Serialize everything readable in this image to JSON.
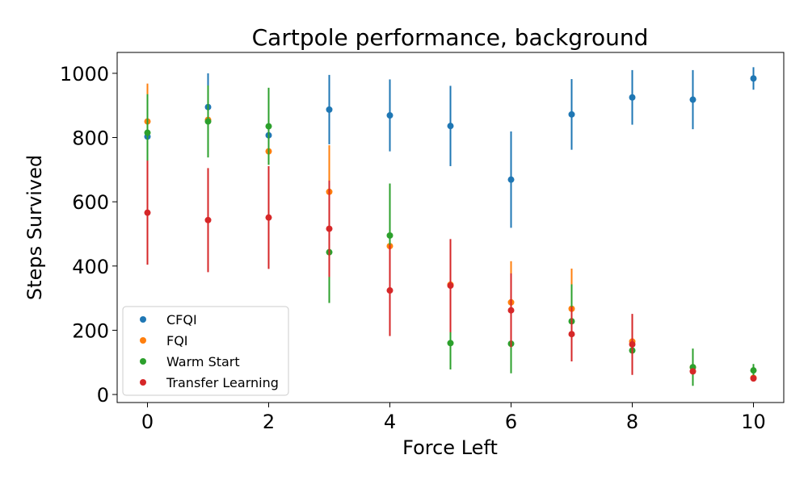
{
  "chart_data": {
    "type": "scatter",
    "title": "Cartpole performance, background",
    "xlabel": "Force Left",
    "ylabel": "Steps Survived",
    "xlim": [
      -0.5,
      10.5
    ],
    "ylim": [
      -25,
      1065
    ],
    "xticks": [
      0,
      2,
      4,
      6,
      8,
      10
    ],
    "yticks": [
      0,
      200,
      400,
      600,
      800,
      1000
    ],
    "grid": false,
    "legend_position": "lower-left",
    "x": [
      0,
      1,
      2,
      3,
      4,
      5,
      6,
      7,
      8,
      9,
      10
    ],
    "series": [
      {
        "name": "CFQI",
        "color": "#1f77b4",
        "values": [
          803,
          895,
          807,
          887,
          869,
          836,
          669,
          872,
          925,
          918,
          984
        ],
        "error": [
          null,
          105,
          null,
          108,
          112,
          125,
          150,
          110,
          85,
          92,
          35
        ]
      },
      {
        "name": "FQI",
        "color": "#ff7f0e",
        "values": [
          850,
          855,
          757,
          631,
          462,
          342,
          287,
          267,
          165,
          85,
          52
        ],
        "error": [
          118,
          null,
          null,
          145,
          null,
          null,
          128,
          125,
          null,
          null,
          null
        ]
      },
      {
        "name": "Warm Start",
        "color": "#2ca02c",
        "values": [
          815,
          850,
          835,
          443,
          495,
          160,
          158,
          228,
          137,
          85,
          75
        ],
        "error": [
          120,
          112,
          120,
          158,
          162,
          82,
          92,
          115,
          75,
          58,
          20
        ]
      },
      {
        "name": "Transfer Learning",
        "color": "#d62728",
        "values": [
          566,
          543,
          551,
          516,
          324,
          339,
          262,
          188,
          156,
          72,
          50
        ],
        "error": [
          162,
          162,
          160,
          150,
          142,
          145,
          115,
          85,
          95,
          null,
          null
        ]
      }
    ]
  }
}
